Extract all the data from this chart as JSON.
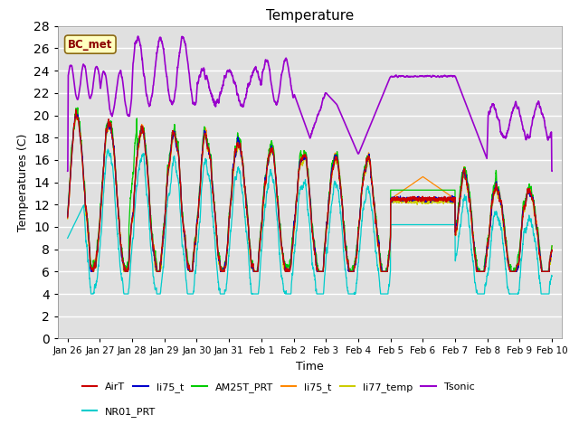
{
  "title": "Temperature",
  "xlabel": "Time",
  "ylabel": "Temperatures (C)",
  "ylim": [
    0,
    28
  ],
  "annotation": "BC_met",
  "legend": [
    {
      "label": "AirT",
      "color": "#cc0000"
    },
    {
      "label": "li75_t",
      "color": "#0000cc"
    },
    {
      "label": "AM25T_PRT",
      "color": "#00cc00"
    },
    {
      "label": "li75_t",
      "color": "#ff8800"
    },
    {
      "label": "li77_temp",
      "color": "#cccc00"
    },
    {
      "label": "Tsonic",
      "color": "#9900cc"
    },
    {
      "label": "NR01_PRT",
      "color": "#00cccc"
    }
  ],
  "xtick_labels": [
    "Jan 26",
    "Jan 27",
    "Jan 28",
    "Jan 29",
    "Jan 30",
    "Jan 31",
    "Feb 1",
    "Feb 2",
    "Feb 3",
    "Feb 4",
    "Feb 5",
    "Feb 6",
    "Feb 7",
    "Feb 8",
    "Feb 9",
    "Feb 10"
  ],
  "xtick_positions": [
    0,
    1,
    2,
    3,
    4,
    5,
    6,
    7,
    8,
    9,
    10,
    11,
    12,
    13,
    14,
    15
  ],
  "ytick_positions": [
    0,
    2,
    4,
    6,
    8,
    10,
    12,
    14,
    16,
    18,
    20,
    22,
    24,
    26,
    28
  ]
}
